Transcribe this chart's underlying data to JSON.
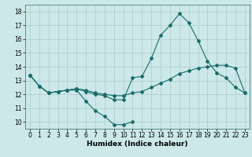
{
  "xlabel": "Humidex (Indice chaleur)",
  "x": [
    0,
    1,
    2,
    3,
    4,
    5,
    6,
    7,
    8,
    9,
    10,
    11,
    12,
    13,
    14,
    15,
    16,
    17,
    18,
    19,
    20,
    21,
    22,
    23
  ],
  "line1_y": [
    13.4,
    12.6,
    12.1,
    12.2,
    12.3,
    12.3,
    11.5,
    10.8,
    10.4,
    9.8,
    9.8,
    10.0,
    null,
    null,
    null,
    null,
    null,
    null,
    null,
    null,
    null,
    null,
    null,
    null
  ],
  "line2_y": [
    13.4,
    12.6,
    12.1,
    12.2,
    12.3,
    12.4,
    12.2,
    12.0,
    11.9,
    11.6,
    11.6,
    13.2,
    13.3,
    14.6,
    16.3,
    17.0,
    17.85,
    17.2,
    15.9,
    14.4,
    13.55,
    13.2,
    12.5,
    12.1
  ],
  "line3_y": [
    13.4,
    12.6,
    12.1,
    12.2,
    12.3,
    12.4,
    12.3,
    12.1,
    12.0,
    11.9,
    11.9,
    12.1,
    12.2,
    12.5,
    12.8,
    13.1,
    13.5,
    13.7,
    13.9,
    14.0,
    14.1,
    14.1,
    13.9,
    12.1
  ],
  "bg_color": "#cce8e8",
  "grid_color": "#aacccc",
  "line_color": "#1a6b6b",
  "xlim": [
    -0.5,
    23.5
  ],
  "ylim": [
    9.5,
    18.5
  ],
  "yticks": [
    10,
    11,
    12,
    13,
    14,
    15,
    16,
    17,
    18
  ],
  "xticks": [
    0,
    1,
    2,
    3,
    4,
    5,
    6,
    7,
    8,
    9,
    10,
    11,
    12,
    13,
    14,
    15,
    16,
    17,
    18,
    19,
    20,
    21,
    22,
    23
  ],
  "tick_fontsize": 5.5,
  "xlabel_fontsize": 6.5
}
